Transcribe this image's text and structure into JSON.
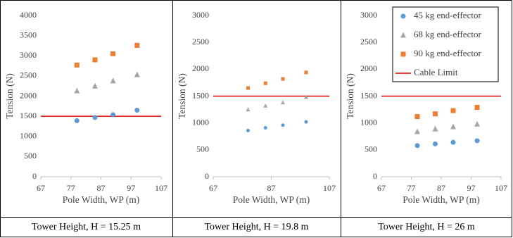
{
  "chart_data": [
    {
      "type": "scatter",
      "title": "Tower Height, H  = 15.25 m",
      "x_label": "Pole Width, WP (m)",
      "y_label": "Tension (N)",
      "x": [
        79,
        85,
        91,
        99
      ],
      "series": [
        {
          "name": "45 kg end-effector",
          "color": "#5b9bd5",
          "marker": "circle",
          "values": [
            1390,
            1470,
            1540,
            1650
          ]
        },
        {
          "name": "68 kg end-effector",
          "color": "#a5a5a5",
          "marker": "triangle",
          "values": [
            2130,
            2250,
            2380,
            2530
          ]
        },
        {
          "name": "90 kg end-effector",
          "color": "#ed7d31",
          "marker": "square",
          "values": [
            2770,
            2900,
            3050,
            3260
          ]
        }
      ],
      "reference_line": {
        "name": "Cable Limit",
        "value": 1500,
        "color": "#e00000"
      },
      "xlim": [
        67,
        107
      ],
      "xticks": [
        67,
        77,
        87,
        97,
        107
      ],
      "ylim": [
        0,
        4000
      ],
      "yticks": [
        0,
        500,
        1000,
        1500,
        2000,
        2500,
        3000,
        3500,
        4000
      ]
    },
    {
      "type": "scatter",
      "title": "Tower Height, H  = 19.8 m",
      "x_label": "Pole Width, WP (m)",
      "y_label": "Tension (N)",
      "x": [
        79,
        85,
        91,
        99
      ],
      "series": [
        {
          "name": "45 kg end-effector",
          "color": "#5b9bd5",
          "marker": "circle",
          "values": [
            860,
            910,
            960,
            1020
          ]
        },
        {
          "name": "68 kg end-effector",
          "color": "#a5a5a5",
          "marker": "triangle",
          "values": [
            1250,
            1320,
            1380,
            1480
          ]
        },
        {
          "name": "90 kg end-effector",
          "color": "#ed7d31",
          "marker": "square",
          "values": [
            1650,
            1740,
            1820,
            1940
          ]
        }
      ],
      "reference_line": {
        "name": "Cable Limit",
        "value": 1500,
        "color": "#e00000"
      },
      "xlim": [
        67,
        107
      ],
      "xticks": [
        67,
        87,
        107
      ],
      "ylim": [
        0,
        3000
      ],
      "yticks": [
        0,
        500,
        1000,
        1500,
        2000,
        2500,
        3000
      ]
    },
    {
      "type": "scatter",
      "title": "Tower Height, H  = 26 m",
      "x_label": "Pole Width, WP (m)",
      "y_label": "Tension (N)",
      "x": [
        79,
        85,
        91,
        99
      ],
      "series": [
        {
          "name": "45 kg end-effector",
          "color": "#5b9bd5",
          "marker": "circle",
          "values": [
            580,
            610,
            640,
            670
          ]
        },
        {
          "name": "68 kg end-effector",
          "color": "#a5a5a5",
          "marker": "triangle",
          "values": [
            840,
            890,
            930,
            980
          ]
        },
        {
          "name": "90 kg end-effector",
          "color": "#ed7d31",
          "marker": "square",
          "values": [
            1120,
            1170,
            1230,
            1290
          ]
        }
      ],
      "reference_line": {
        "name": "Cable Limit",
        "value": 1500,
        "color": "#e00000"
      },
      "xlim": [
        67,
        107
      ],
      "xticks": [
        67,
        77,
        87,
        97,
        107
      ],
      "ylim": [
        0,
        3000
      ],
      "yticks": [
        0,
        500,
        1000,
        1500,
        2000,
        2500,
        3000
      ],
      "legend": "upper right"
    }
  ]
}
